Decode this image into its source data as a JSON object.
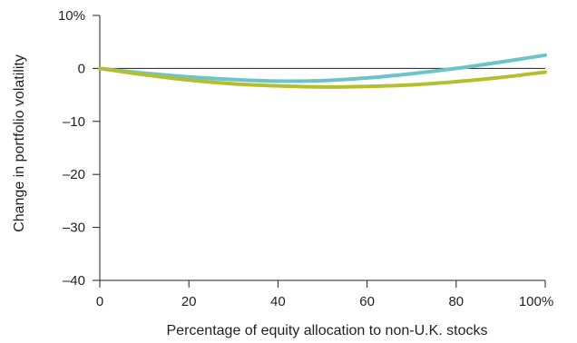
{
  "chart_data": {
    "type": "line",
    "title": "",
    "xlabel": "Percentage of equity allocation to non-U.K. stocks",
    "ylabel": "Change in portfolio volatility",
    "xlim": [
      0,
      100
    ],
    "ylim": [
      -40,
      10
    ],
    "x_ticks": [
      0,
      20,
      40,
      60,
      80,
      100
    ],
    "x_tick_labels": [
      "0",
      "20",
      "40",
      "60",
      "80",
      "100%"
    ],
    "y_ticks": [
      10,
      0,
      -10,
      -20,
      -30,
      -40
    ],
    "y_tick_labels": [
      "10%",
      "0",
      "–10",
      "–20",
      "–30",
      "–40"
    ],
    "zero_line": true,
    "grid": false,
    "legend": "none",
    "series": [
      {
        "color": "#6cc4c9",
        "x": [
          0,
          10,
          20,
          30,
          40,
          50,
          60,
          70,
          80,
          90,
          100
        ],
        "y": [
          0,
          -0.9,
          -1.6,
          -2.1,
          -2.4,
          -2.3,
          -1.8,
          -1.0,
          0.0,
          1.2,
          2.5
        ]
      },
      {
        "color": "#b3bf2c",
        "x": [
          0,
          10,
          20,
          30,
          40,
          50,
          60,
          70,
          80,
          90,
          100
        ],
        "y": [
          0,
          -1.2,
          -2.2,
          -2.9,
          -3.3,
          -3.5,
          -3.4,
          -3.1,
          -2.5,
          -1.7,
          -0.7
        ]
      }
    ]
  }
}
